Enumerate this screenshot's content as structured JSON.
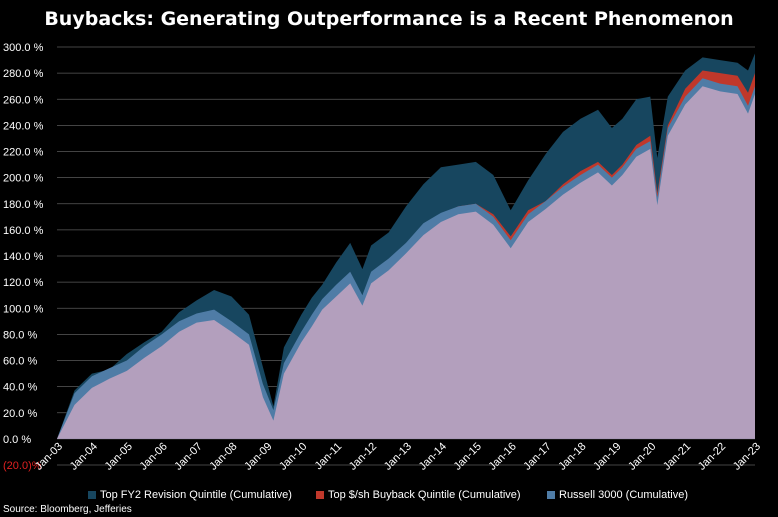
{
  "chart_data": {
    "type": "area",
    "title": "Buybacks: Generating Outperformance is a Recent Phenomenon",
    "source": "Source: Bloomberg, Jefferies",
    "ylim": [
      -20,
      300
    ],
    "y_ticks": [
      {
        "value": 300,
        "label": "300.0 %"
      },
      {
        "value": 280,
        "label": "280.0 %"
      },
      {
        "value": 260,
        "label": "260.0 %"
      },
      {
        "value": 240,
        "label": "240.0 %"
      },
      {
        "value": 220,
        "label": "220.0 %"
      },
      {
        "value": 200,
        "label": "200.0 %"
      },
      {
        "value": 180,
        "label": "180.0 %"
      },
      {
        "value": 160,
        "label": "160.0 %"
      },
      {
        "value": 140,
        "label": "140.0 %"
      },
      {
        "value": 120,
        "label": "120.0 %"
      },
      {
        "value": 100,
        "label": "100.0 %"
      },
      {
        "value": 80,
        "label": "80.0 %"
      },
      {
        "value": 60,
        "label": "60.0 %"
      },
      {
        "value": 40,
        "label": "40.0 %"
      },
      {
        "value": 20,
        "label": "20.0 %"
      },
      {
        "value": 0,
        "label": "0.0 %"
      },
      {
        "value": -20,
        "label": "(20.0)%",
        "color": "#e02020"
      }
    ],
    "x_ticks": [
      "Jan-03",
      "Jan-04",
      "Jan-05",
      "Jan-06",
      "Jan-07",
      "Jan-08",
      "Jan-09",
      "Jan-10",
      "Jan-11",
      "Jan-12",
      "Jan-13",
      "Jan-14",
      "Jan-15",
      "Jan-16",
      "Jan-17",
      "Jan-18",
      "Jan-19",
      "Jan-20",
      "Jan-21",
      "Jan-22",
      "Jan-23"
    ],
    "x": [
      2003.0,
      2003.5,
      2004.0,
      2004.5,
      2005.0,
      2005.5,
      2006.0,
      2006.5,
      2007.0,
      2007.5,
      2008.0,
      2008.5,
      2008.9,
      2009.2,
      2009.5,
      2010.0,
      2010.3,
      2010.6,
      2011.0,
      2011.4,
      2011.75,
      2012.0,
      2012.5,
      2013.0,
      2013.5,
      2014.0,
      2014.5,
      2015.0,
      2015.5,
      2016.0,
      2016.5,
      2017.0,
      2017.5,
      2018.0,
      2018.5,
      2018.9,
      2019.2,
      2019.6,
      2020.0,
      2020.2,
      2020.5,
      2021.0,
      2021.5,
      2022.0,
      2022.5,
      2022.8,
      2023.0
    ],
    "series": [
      {
        "name": "Top FY2 Revision Quintile (Cumulative)",
        "color": "#17465f",
        "values": [
          0,
          37,
          50,
          53,
          65,
          74,
          82,
          97,
          106,
          114,
          109,
          95,
          55,
          25,
          70,
          95,
          108,
          118,
          135,
          150,
          130,
          148,
          158,
          178,
          195,
          208,
          210,
          212,
          202,
          175,
          198,
          218,
          235,
          245,
          252,
          238,
          245,
          260,
          262,
          215,
          262,
          282,
          292,
          290,
          288,
          282,
          295
        ]
      },
      {
        "name": "Top $/sh Buyback Quintile (Cumulative)",
        "color": "#c0382b",
        "values": [
          0,
          32,
          45,
          52,
          58,
          68,
          77,
          88,
          95,
          97,
          88,
          78,
          38,
          20,
          56,
          80,
          92,
          105,
          115,
          125,
          108,
          125,
          135,
          148,
          162,
          172,
          178,
          180,
          172,
          155,
          175,
          182,
          195,
          205,
          212,
          202,
          210,
          225,
          232,
          188,
          240,
          268,
          282,
          280,
          278,
          265,
          280
        ]
      },
      {
        "name": "Russell 3000 (Cumulative)",
        "color": "#4f7ca6",
        "values": [
          0,
          35,
          48,
          54,
          60,
          71,
          80,
          90,
          96,
          99,
          90,
          80,
          42,
          22,
          58,
          82,
          95,
          107,
          118,
          128,
          110,
          128,
          138,
          150,
          165,
          173,
          178,
          180,
          170,
          152,
          172,
          182,
          193,
          202,
          210,
          200,
          208,
          222,
          228,
          185,
          238,
          262,
          276,
          272,
          270,
          255,
          270
        ]
      }
    ],
    "overlap_color": "#b39fbd",
    "legend_position": "bottom"
  }
}
